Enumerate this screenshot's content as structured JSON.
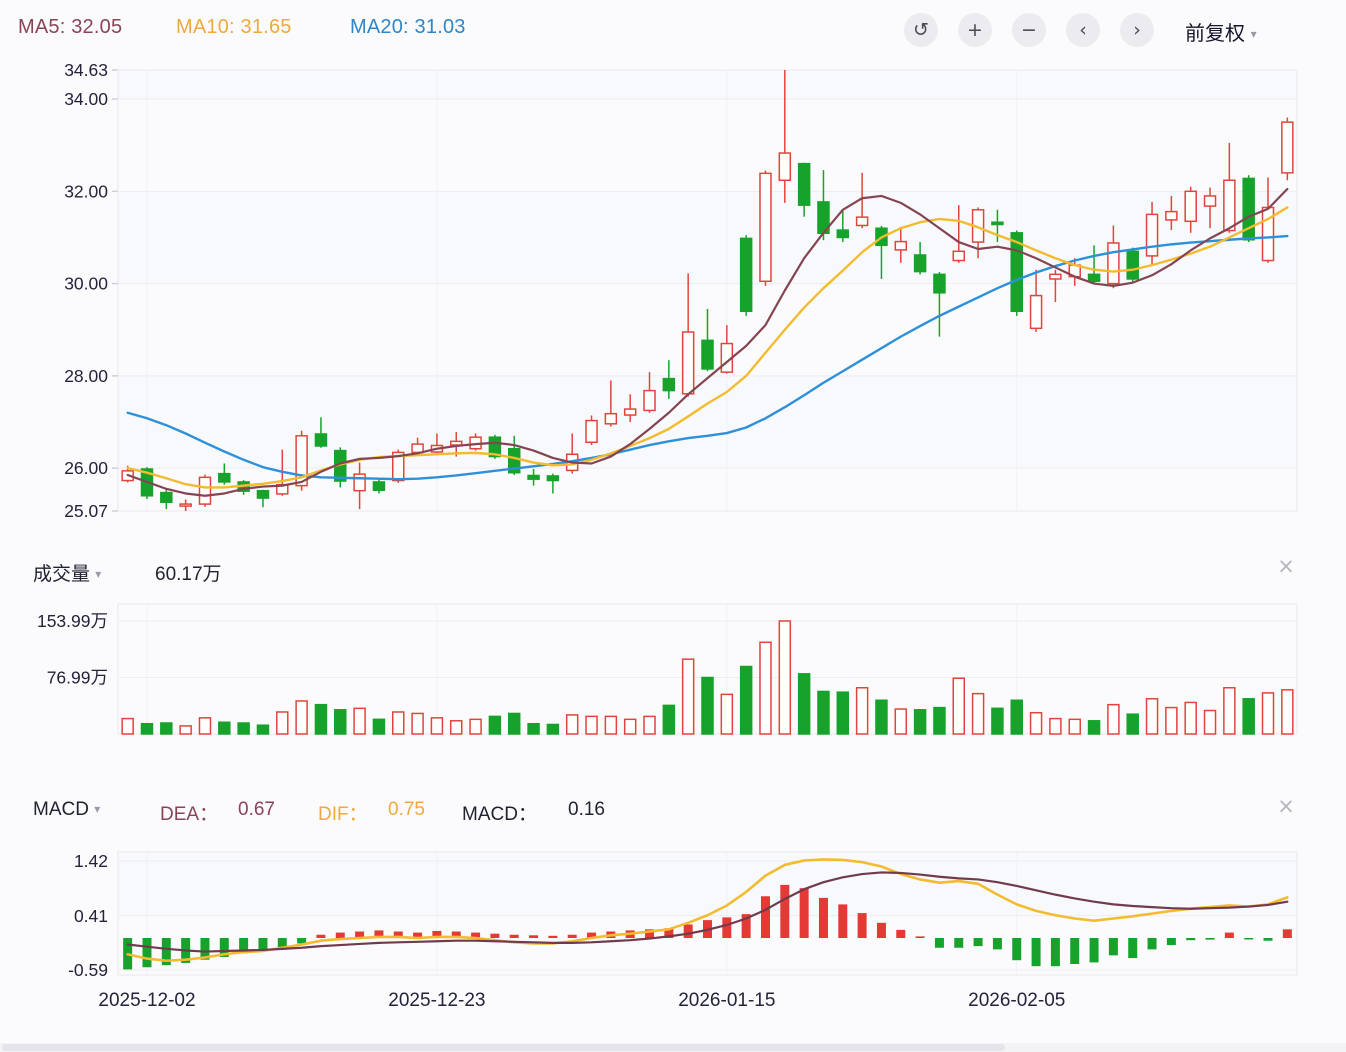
{
  "header": {
    "ma5": "MA5: 32.05",
    "ma10": "MA10: 31.65",
    "ma20": "MA20: 31.03",
    "toolbar": [
      {
        "name": "undo",
        "glyph": "↺"
      },
      {
        "name": "zoom-in",
        "glyph": "+"
      },
      {
        "name": "zoom-out",
        "glyph": "−"
      },
      {
        "name": "pan-left",
        "glyph": "‹"
      },
      {
        "name": "pan-right",
        "glyph": "›"
      }
    ],
    "adjust": {
      "label": "前复权",
      "caret": "▾"
    }
  },
  "volume_panel": {
    "title": "成交量",
    "caret": "▾",
    "value": "60.17万",
    "close": "×",
    "y_ticks": [
      {
        "label": "153.99万",
        "value": 153.99
      },
      {
        "label": "76.99万",
        "value": 76.99
      }
    ]
  },
  "macd_panel": {
    "title": "MACD",
    "caret": "▾",
    "close": "×",
    "dea_label": "DEA：",
    "dea_value": "0.67",
    "dif_label": "DIF：",
    "dif_value": "0.75",
    "macd_label": "MACD：",
    "macd_value": "0.16",
    "y_ticks": [
      {
        "label": "1.42",
        "value": 1.42
      },
      {
        "label": "0.41",
        "value": 0.41
      },
      {
        "label": "-0.59",
        "value": -0.59
      }
    ]
  },
  "main_panel": {
    "price_max": 34.63,
    "price_min": 25.07,
    "y_ticks": [
      {
        "label": "34.63",
        "value": 34.63
      },
      {
        "label": "34.00",
        "value": 34.0
      },
      {
        "label": "32.00",
        "value": 32.0
      },
      {
        "label": "30.00",
        "value": 30.0
      },
      {
        "label": "28.00",
        "value": 28.0
      },
      {
        "label": "26.00",
        "value": 26.0
      },
      {
        "label": "25.07",
        "value": 25.07
      }
    ]
  },
  "x_axis": [
    {
      "label": "2025-12-02",
      "index": 1
    },
    {
      "label": "2025-12-23",
      "index": 16
    },
    {
      "label": "2026-01-15",
      "index": 31
    },
    {
      "label": "2026-02-05",
      "index": 46
    }
  ],
  "colors": {
    "up": "#e0453c",
    "down": "#17a32b",
    "ma5": "#854451",
    "ma10": "#f3bb2f",
    "ma20": "#2e90d8",
    "dif": "#f3bb2f",
    "dea": "#713a4d",
    "grid": "#ededf2",
    "axis_text": "#23233b",
    "band": "#f8f9fc"
  },
  "chart_data": {
    "type": "candlestick",
    "panels": [
      "price+MA(5,10,20)",
      "volume",
      "MACD(DIF,DEA,hist)"
    ],
    "title": "",
    "adjust_mode": "前复权",
    "volume_unit": "万",
    "candle_columns": [
      "open",
      "close",
      "high",
      "low",
      "volume_wan",
      "macd_hist"
    ],
    "candles": [
      [
        25.73,
        25.94,
        26.05,
        25.69,
        21,
        -0.58
      ],
      [
        25.98,
        25.4,
        26.02,
        25.33,
        14,
        -0.54
      ],
      [
        25.47,
        25.26,
        25.54,
        25.11,
        15,
        -0.5
      ],
      [
        25.2,
        25.22,
        25.32,
        25.07,
        11,
        -0.46
      ],
      [
        25.22,
        25.8,
        25.86,
        25.16,
        22,
        -0.4
      ],
      [
        25.88,
        25.7,
        26.1,
        25.64,
        16,
        -0.35
      ],
      [
        25.7,
        25.5,
        25.74,
        25.42,
        15,
        -0.28
      ],
      [
        25.51,
        25.35,
        25.53,
        25.15,
        12,
        -0.24
      ],
      [
        25.44,
        25.64,
        26.4,
        25.4,
        30,
        -0.18
      ],
      [
        25.62,
        26.7,
        26.81,
        25.51,
        45,
        -0.1
      ],
      [
        26.74,
        26.48,
        27.1,
        26.44,
        40,
        0.06
      ],
      [
        26.38,
        25.72,
        26.45,
        25.58,
        33,
        0.1
      ],
      [
        25.51,
        25.87,
        26.12,
        25.11,
        35,
        0.12
      ],
      [
        25.7,
        25.52,
        25.76,
        25.45,
        20,
        0.14
      ],
      [
        25.73,
        26.34,
        26.4,
        25.68,
        30,
        0.12
      ],
      [
        26.34,
        26.52,
        26.66,
        26.28,
        28,
        0.1
      ],
      [
        26.35,
        26.49,
        26.75,
        26.3,
        22,
        0.13
      ],
      [
        26.5,
        26.58,
        26.78,
        26.25,
        18,
        0.12
      ],
      [
        26.42,
        26.67,
        26.75,
        26.38,
        20,
        0.1
      ],
      [
        26.67,
        26.25,
        26.72,
        26.2,
        24,
        0.08
      ],
      [
        26.42,
        25.9,
        26.7,
        25.85,
        28,
        0.06
      ],
      [
        25.84,
        25.76,
        25.98,
        25.62,
        14,
        0.05
      ],
      [
        25.83,
        25.73,
        25.88,
        25.45,
        13,
        0.04
      ],
      [
        25.95,
        26.3,
        26.75,
        25.88,
        26,
        0.06
      ],
      [
        26.56,
        27.03,
        27.14,
        26.5,
        24,
        0.1
      ],
      [
        26.96,
        27.18,
        27.9,
        26.9,
        24,
        0.12
      ],
      [
        27.15,
        27.28,
        27.6,
        27.0,
        20,
        0.14
      ],
      [
        27.25,
        27.68,
        28.08,
        27.2,
        24,
        0.16
      ],
      [
        27.94,
        27.68,
        28.34,
        27.5,
        39,
        0.18
      ],
      [
        27.61,
        28.95,
        30.22,
        27.55,
        102,
        0.25
      ],
      [
        28.77,
        28.15,
        29.45,
        28.1,
        77,
        0.33
      ],
      [
        28.08,
        28.7,
        29.1,
        28.05,
        54,
        0.38
      ],
      [
        30.98,
        29.4,
        31.05,
        29.3,
        92,
        0.44
      ],
      [
        30.05,
        32.39,
        32.45,
        29.95,
        125,
        0.77
      ],
      [
        32.24,
        32.83,
        34.63,
        31.75,
        154,
        0.98
      ],
      [
        32.6,
        31.7,
        32.62,
        31.45,
        82,
        0.92
      ],
      [
        31.77,
        31.09,
        32.46,
        30.94,
        58,
        0.74
      ],
      [
        31.16,
        31.0,
        31.6,
        30.9,
        57,
        0.62
      ],
      [
        31.26,
        31.44,
        32.4,
        31.2,
        63,
        0.46
      ],
      [
        31.2,
        30.83,
        31.25,
        30.1,
        46,
        0.28
      ],
      [
        30.73,
        30.91,
        31.23,
        30.45,
        34,
        0.15
      ],
      [
        30.62,
        30.26,
        30.9,
        30.2,
        33,
        0.03
      ],
      [
        30.2,
        29.8,
        30.25,
        28.85,
        36,
        -0.18
      ],
      [
        30.5,
        30.7,
        31.7,
        30.45,
        76,
        -0.18
      ],
      [
        30.9,
        31.6,
        31.65,
        30.55,
        55,
        -0.15
      ],
      [
        31.33,
        31.28,
        31.6,
        30.9,
        35,
        -0.21
      ],
      [
        31.1,
        29.4,
        31.15,
        29.3,
        46,
        -0.41
      ],
      [
        29.03,
        29.74,
        30.3,
        28.95,
        29,
        -0.52
      ],
      [
        30.1,
        30.2,
        30.3,
        29.6,
        21,
        -0.52
      ],
      [
        30.15,
        30.4,
        30.55,
        29.95,
        20,
        -0.48
      ],
      [
        30.2,
        30.05,
        30.83,
        30.0,
        18,
        -0.45
      ],
      [
        30.0,
        30.88,
        31.26,
        29.9,
        40,
        -0.32
      ],
      [
        30.7,
        30.1,
        30.78,
        30.02,
        27,
        -0.37
      ],
      [
        30.6,
        31.5,
        31.77,
        30.4,
        48,
        -0.21
      ],
      [
        31.38,
        31.56,
        31.9,
        31.16,
        36,
        -0.13
      ],
      [
        31.35,
        32.0,
        32.1,
        31.1,
        43,
        -0.04
      ],
      [
        31.68,
        31.9,
        32.08,
        31.2,
        32,
        -0.03
      ],
      [
        31.15,
        32.24,
        33.05,
        31.1,
        63,
        0.1
      ],
      [
        32.28,
        30.95,
        32.35,
        30.9,
        48,
        -0.02
      ],
      [
        30.5,
        31.65,
        32.3,
        30.45,
        56,
        -0.05
      ],
      [
        32.4,
        33.5,
        33.6,
        32.24,
        60.17,
        0.16
      ]
    ],
    "ma5": [
      25.85,
      25.7,
      25.55,
      25.45,
      25.4,
      25.45,
      25.55,
      25.6,
      25.62,
      25.7,
      25.92,
      26.1,
      26.2,
      26.22,
      26.26,
      26.32,
      26.42,
      26.48,
      26.52,
      26.55,
      26.5,
      26.38,
      26.22,
      26.12,
      26.1,
      26.25,
      26.52,
      26.85,
      27.2,
      27.6,
      27.95,
      28.3,
      28.65,
      29.1,
      29.85,
      30.55,
      31.1,
      31.6,
      31.85,
      31.9,
      31.75,
      31.5,
      31.2,
      30.9,
      30.75,
      30.8,
      30.72,
      30.55,
      30.35,
      30.15,
      30.0,
      29.95,
      30.02,
      30.18,
      30.42,
      30.72,
      30.98,
      31.2,
      31.45,
      31.62,
      32.05
    ],
    "ma10": [
      26.0,
      25.9,
      25.78,
      25.65,
      25.58,
      25.58,
      25.62,
      25.66,
      25.72,
      25.8,
      25.95,
      26.08,
      26.18,
      26.24,
      26.26,
      26.28,
      26.3,
      26.32,
      26.33,
      26.3,
      26.22,
      26.12,
      26.06,
      26.08,
      26.18,
      26.32,
      26.48,
      26.65,
      26.85,
      27.12,
      27.4,
      27.65,
      28.0,
      28.5,
      29.0,
      29.48,
      29.9,
      30.28,
      30.68,
      31.0,
      31.2,
      31.33,
      31.4,
      31.36,
      31.22,
      31.05,
      30.9,
      30.72,
      30.55,
      30.4,
      30.3,
      30.26,
      30.3,
      30.4,
      30.52,
      30.65,
      30.8,
      31.0,
      31.2,
      31.4,
      31.65
    ],
    "ma20": [
      27.2,
      27.08,
      26.93,
      26.75,
      26.55,
      26.36,
      26.18,
      26.02,
      25.92,
      25.84,
      25.8,
      25.79,
      25.78,
      25.77,
      25.76,
      25.77,
      25.8,
      25.84,
      25.89,
      25.94,
      25.99,
      26.04,
      26.09,
      26.15,
      26.22,
      26.3,
      26.4,
      26.5,
      26.58,
      26.65,
      26.7,
      26.76,
      26.88,
      27.08,
      27.32,
      27.58,
      27.85,
      28.1,
      28.35,
      28.6,
      28.85,
      29.08,
      29.3,
      29.5,
      29.7,
      29.9,
      30.08,
      30.24,
      30.38,
      30.5,
      30.6,
      30.68,
      30.74,
      30.8,
      30.85,
      30.89,
      30.92,
      30.95,
      30.98,
      31.0,
      31.03
    ],
    "dif": [
      -0.3,
      -0.38,
      -0.42,
      -0.4,
      -0.36,
      -0.3,
      -0.26,
      -0.24,
      -0.18,
      -0.12,
      -0.05,
      -0.02,
      0.0,
      0.02,
      0.02,
      0.0,
      0.02,
      0.02,
      0.0,
      -0.04,
      -0.08,
      -0.1,
      -0.1,
      -0.06,
      0.0,
      0.05,
      0.08,
      0.12,
      0.16,
      0.28,
      0.42,
      0.6,
      0.85,
      1.15,
      1.35,
      1.43,
      1.45,
      1.44,
      1.4,
      1.32,
      1.18,
      1.08,
      1.02,
      1.05,
      1.0,
      0.8,
      0.62,
      0.5,
      0.42,
      0.36,
      0.32,
      0.36,
      0.4,
      0.45,
      0.5,
      0.54,
      0.57,
      0.6,
      0.58,
      0.62,
      0.75
    ],
    "dea": [
      -0.12,
      -0.16,
      -0.2,
      -0.23,
      -0.25,
      -0.24,
      -0.23,
      -0.22,
      -0.2,
      -0.18,
      -0.15,
      -0.13,
      -0.11,
      -0.09,
      -0.08,
      -0.07,
      -0.06,
      -0.05,
      -0.05,
      -0.06,
      -0.07,
      -0.08,
      -0.09,
      -0.09,
      -0.08,
      -0.06,
      -0.04,
      -0.01,
      0.03,
      0.08,
      0.15,
      0.24,
      0.36,
      0.52,
      0.72,
      0.9,
      1.03,
      1.12,
      1.18,
      1.21,
      1.2,
      1.17,
      1.13,
      1.1,
      1.08,
      1.03,
      0.96,
      0.88,
      0.8,
      0.73,
      0.67,
      0.62,
      0.59,
      0.57,
      0.55,
      0.54,
      0.55,
      0.56,
      0.58,
      0.61,
      0.67
    ],
    "price_axis_range": [
      25.07,
      34.63
    ],
    "volume_axis_max_wan": 153.99,
    "macd_axis_range": [
      -0.59,
      1.42
    ],
    "grid": true,
    "legend_position": "top-left"
  }
}
